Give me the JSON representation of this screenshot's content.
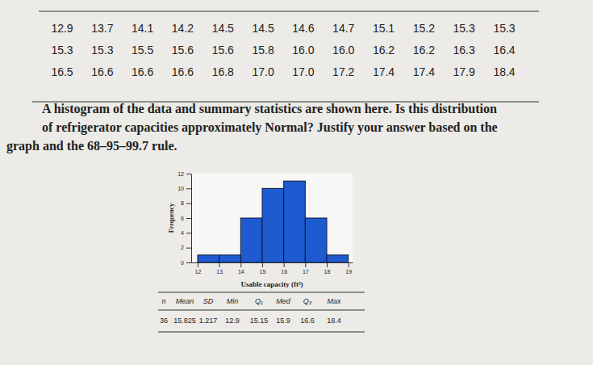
{
  "data_table": [
    [
      "12.9",
      "13.7",
      "14.1",
      "14.2",
      "14.5",
      "14.5",
      "14.6",
      "14.7",
      "15.1",
      "15.2",
      "15.3",
      "15.3"
    ],
    [
      "15.3",
      "15.3",
      "15.5",
      "15.6",
      "15.6",
      "15.8",
      "16.0",
      "16.0",
      "16.2",
      "16.2",
      "16.3",
      "16.4"
    ],
    [
      "16.5",
      "16.6",
      "16.6",
      "16.6",
      "16.8",
      "17.0",
      "17.0",
      "17.2",
      "17.4",
      "17.4",
      "17.9",
      "18.4"
    ]
  ],
  "question": [
    "A histogram of the data and summary statistics are shown here. Is this distribution",
    "of refrigerator capacities approximately Normal? Justify your answer based on the",
    "graph and the 68–95–99.7 rule."
  ],
  "chart_data": {
    "type": "histogram",
    "bins": [
      12,
      13,
      14,
      15,
      16,
      17,
      18,
      19
    ],
    "values": [
      1,
      1,
      6,
      10,
      11,
      6,
      1
    ],
    "color": "#1f5bd0",
    "x_label": "Usable capacity (ft³)",
    "y_label": "Frequency",
    "xlim": [
      11.7,
      19.2
    ],
    "xticks": [
      12,
      13,
      14,
      15,
      16,
      17,
      18,
      19
    ],
    "ylim": [
      0,
      12
    ],
    "yticks": [
      0,
      2,
      4,
      6,
      8,
      10,
      12
    ]
  },
  "summary_table": {
    "header": [
      "n",
      "Mean",
      "SD",
      "Min",
      "Q₁",
      "Med",
      "Q₃",
      "Max"
    ],
    "row": [
      "36",
      "15.825",
      "1.217",
      "12.9",
      "15.15",
      "15.9",
      "16.6",
      "18.4"
    ]
  }
}
